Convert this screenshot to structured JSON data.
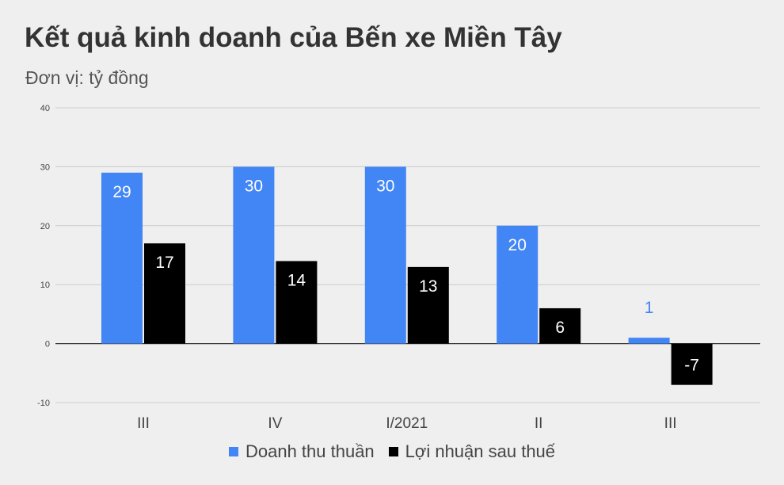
{
  "title": "Kết quả kinh doanh của Bến xe Miền Tây",
  "subtitle": "Đơn vị: tỷ đồng",
  "colors": {
    "background": "#efefef",
    "revenue": "#4285f4",
    "profit": "#000000",
    "grid": "#cccccc",
    "axis_text": "#444444"
  },
  "chart_data": {
    "type": "bar",
    "title": "Kết quả kinh doanh của Bến xe Miền Tây",
    "subtitle": "Đơn vị: tỷ đồng",
    "categories": [
      "III",
      "IV",
      "I/2021",
      "II",
      "III"
    ],
    "series": [
      {
        "name": "Doanh thu thuần",
        "color": "#4285f4",
        "values": [
          29,
          30,
          30,
          20,
          1
        ]
      },
      {
        "name": "Lợi nhuận sau thuế",
        "color": "#000000",
        "values": [
          17,
          14,
          13,
          6,
          -7
        ]
      }
    ],
    "ylim": [
      -10,
      40
    ],
    "yticks": [
      -10,
      0,
      10,
      20,
      30,
      40
    ],
    "grid": true,
    "legend_position": "bottom"
  }
}
